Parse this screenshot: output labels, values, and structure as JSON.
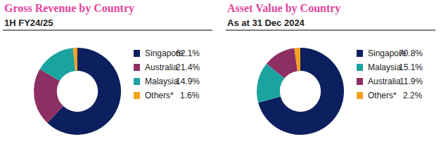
{
  "chart_data": [
    {
      "type": "pie",
      "title": "Gross Revenue by Country",
      "subtitle": "1H FY24/25",
      "categories": [
        "Singapore",
        "Australia",
        "Malaysia",
        "Others*"
      ],
      "values": [
        62.1,
        21.4,
        14.9,
        1.6
      ],
      "value_labels": [
        "62.1%",
        "21.4%",
        "14.9%",
        "1.6%"
      ],
      "colors": [
        "#0c1f5e",
        "#8e2f63",
        "#1ba3a0",
        "#f5a21f"
      ]
    },
    {
      "type": "pie",
      "title": "Asset Value by Country",
      "subtitle": "As at 31 Dec 2024",
      "categories": [
        "Singapore",
        "Malaysia",
        "Australia",
        "Others*"
      ],
      "values": [
        70.8,
        15.1,
        11.9,
        2.2
      ],
      "value_labels": [
        "70.8%",
        "15.1%",
        "11.9%",
        "2.2%"
      ],
      "colors": [
        "#0c1f5e",
        "#1ba3a0",
        "#8e2f63",
        "#f5a21f"
      ]
    }
  ]
}
